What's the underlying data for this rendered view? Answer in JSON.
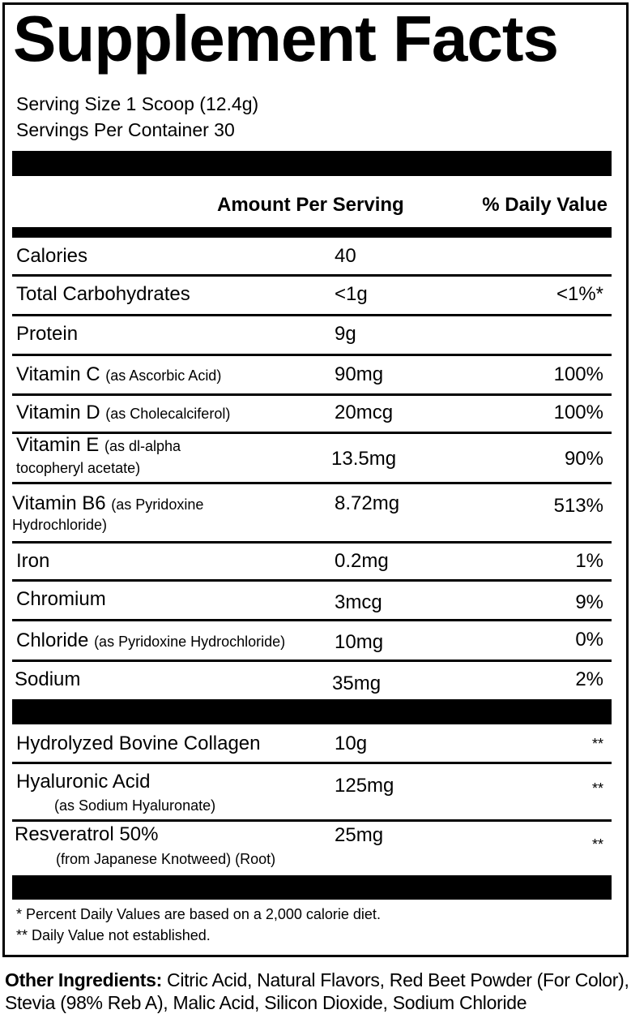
{
  "title": "Supplement Facts",
  "serving_size": "Serving Size 1 Scoop (12.4g)",
  "servings_per_container": "Servings Per Container 30",
  "header": {
    "amount": "Amount Per Serving",
    "dv": "% Daily Value"
  },
  "rows": [
    {
      "name": "Calories",
      "amount": "40",
      "dv": ""
    },
    {
      "name": "Total Carbohydrates",
      "amount": "<1g",
      "dv": "<1%*"
    },
    {
      "name": "Protein",
      "amount": "9g",
      "dv": ""
    },
    {
      "name": "Vitamin C",
      "sub": "(as Ascorbic Acid)",
      "amount": "90mg",
      "dv": "100%"
    },
    {
      "name": "Vitamin D",
      "sub": "(as Cholecalciferol)",
      "amount": "20mcg",
      "dv": "100%"
    },
    {
      "name": "Vitamin E",
      "sub": "(as dl-alpha",
      "sub2": "tocopheryl acetate)",
      "amount": "13.5mg",
      "dv": "90%"
    },
    {
      "name": "Vitamin B6",
      "sub": "(as Pyridoxine",
      "sub2": "Hydrochloride)",
      "amount": "8.72mg",
      "dv": "513%"
    },
    {
      "name": "Iron",
      "amount": "0.2mg",
      "dv": "1%"
    },
    {
      "name": "Chromium",
      "amount": "3mcg",
      "dv": "9%"
    },
    {
      "name": "Chloride",
      "sub": "(as Pyridoxine Hydrochloride)",
      "amount": "10mg",
      "dv": "0%"
    },
    {
      "name": "Sodium",
      "amount": "35mg",
      "dv": "2%"
    }
  ],
  "other_rows": [
    {
      "name": "Hydrolyzed Bovine Collagen",
      "amount": "10g",
      "dv": "**"
    },
    {
      "name": "Hyaluronic Acid",
      "sub2": "(as Sodium Hyaluronate)",
      "amount": "125mg",
      "dv": "**"
    },
    {
      "name": "Resveratrol 50%",
      "sub2": "(from Japanese Knotweed) (Root)",
      "amount": "25mg",
      "dv": "**"
    }
  ],
  "footnotes": [
    "* Percent Daily Values are based on a 2,000 calorie diet.",
    "** Daily Value not established."
  ],
  "other_ingredients": {
    "label": "Other Ingredients:",
    "text": " Citric Acid, Natural Flavors, Red Beet Powder (For Color), Stevia (98% Reb A), Malic Acid, Silicon Dioxide, Sodium Chloride"
  }
}
